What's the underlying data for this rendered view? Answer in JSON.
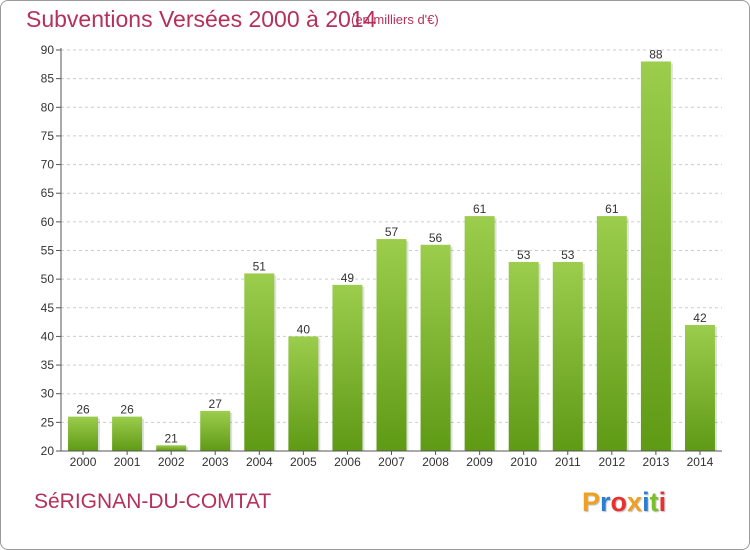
{
  "header": {
    "title": "Subventions Versées 2000 à 2014",
    "unit": "(en milliers d'€)"
  },
  "footer": {
    "commune": "SéRIGNAN-DU-COMTAT",
    "logo": "Proxiti"
  },
  "colors": {
    "title": "#b5305a",
    "bar_top": "#9ccd4d",
    "bar_bottom": "#5f9a15",
    "grid": "#cccccc",
    "logo_letters": [
      "#f0a020",
      "#2a7fd4",
      "#e83030",
      "#f0a020",
      "#2a7fd4",
      "#7bbf2a",
      "#e83030"
    ]
  },
  "chart_data": {
    "type": "bar",
    "title": "Subventions Versées 2000 à 2014",
    "ylabel": "(en milliers d'€)",
    "xlabel": "",
    "categories": [
      "2000",
      "2001",
      "2002",
      "2003",
      "2004",
      "2005",
      "2006",
      "2007",
      "2008",
      "2009",
      "2010",
      "2011",
      "2012",
      "2013",
      "2014"
    ],
    "values": [
      26,
      26,
      21,
      27,
      51,
      40,
      49,
      57,
      56,
      61,
      53,
      53,
      61,
      88,
      42
    ],
    "ylim": [
      20,
      90
    ],
    "yticks": [
      20,
      25,
      30,
      35,
      40,
      45,
      50,
      55,
      60,
      65,
      70,
      75,
      80,
      85,
      90
    ],
    "grid": true,
    "legend": "none"
  }
}
